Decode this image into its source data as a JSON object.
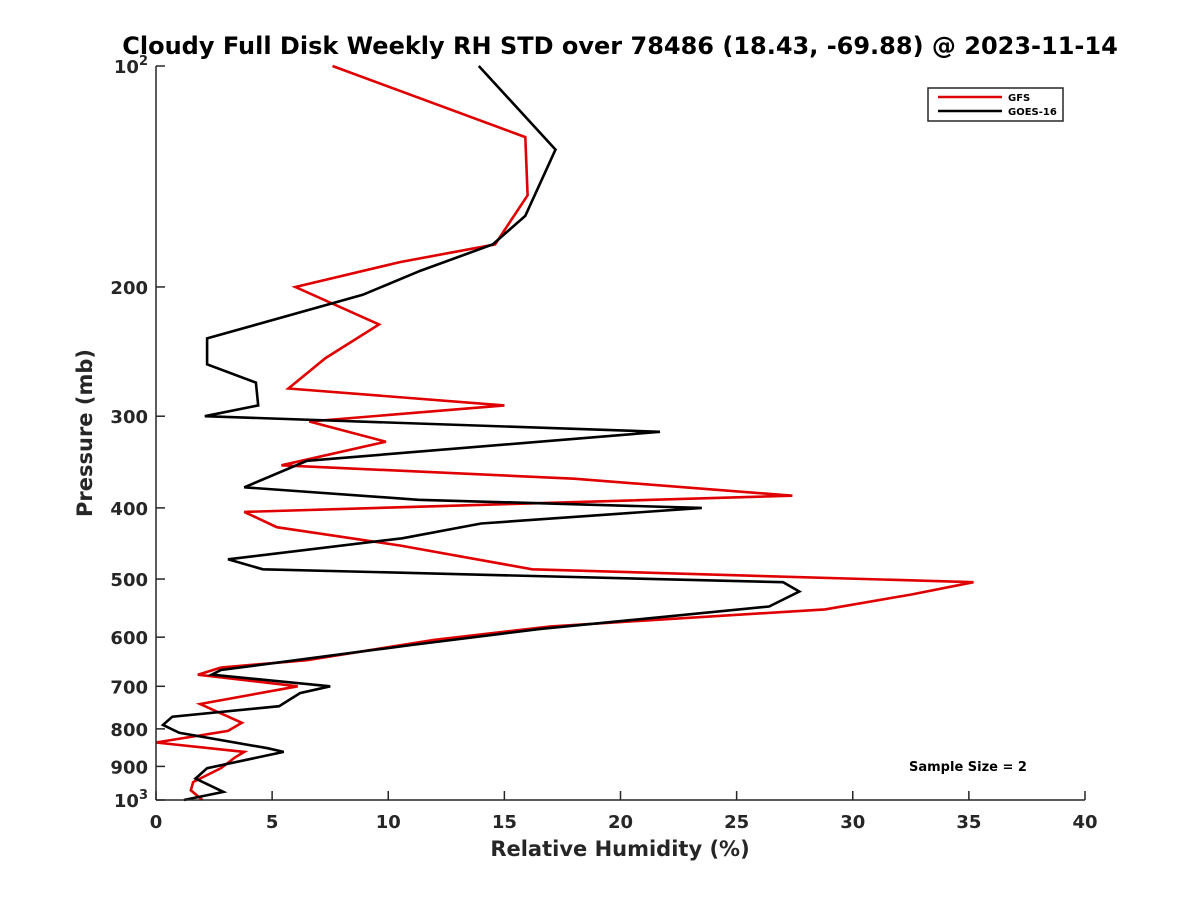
{
  "chart_data": {
    "type": "line",
    "title": "Cloudy Full Disk Weekly RH STD over 78486 (18.43, -69.88) @ 2023-11-14",
    "xlabel": "Relative Humidity (%)",
    "ylabel": "Pressure (mb)",
    "xlim": [
      0,
      40
    ],
    "ylim": [
      100,
      1000
    ],
    "y_scale": "log",
    "y_reversed": true,
    "grid": false,
    "legend_position": "top-right",
    "x_ticks": [
      0,
      5,
      10,
      15,
      20,
      25,
      30,
      35,
      40
    ],
    "y_ticks": [
      {
        "value": 100,
        "base": "10",
        "exp": "2"
      },
      {
        "value": 200,
        "label": "200"
      },
      {
        "value": 300,
        "label": "300"
      },
      {
        "value": 400,
        "label": "400"
      },
      {
        "value": 500,
        "label": "500"
      },
      {
        "value": 600,
        "label": "600"
      },
      {
        "value": 700,
        "label": "700"
      },
      {
        "value": 800,
        "label": "800"
      },
      {
        "value": 900,
        "label": "900"
      },
      {
        "value": 1000,
        "base": "10",
        "exp": "3"
      }
    ],
    "series": [
      {
        "name": "GFS",
        "color": "#e00000",
        "points": [
          [
            7.6,
            100
          ],
          [
            15.9,
            125
          ],
          [
            16.0,
            150
          ],
          [
            14.6,
            175
          ],
          [
            10.5,
            185
          ],
          [
            6.0,
            200
          ],
          [
            9.6,
            225
          ],
          [
            7.3,
            250
          ],
          [
            5.7,
            275
          ],
          [
            15.0,
            290
          ],
          [
            6.6,
            305
          ],
          [
            9.9,
            325
          ],
          [
            5.4,
            350
          ],
          [
            18.0,
            365
          ],
          [
            27.4,
            385
          ],
          [
            3.8,
            405
          ],
          [
            5.2,
            425
          ],
          [
            10.5,
            450
          ],
          [
            16.2,
            485
          ],
          [
            35.2,
            505
          ],
          [
            32.5,
            525
          ],
          [
            28.8,
            550
          ],
          [
            17.0,
            580
          ],
          [
            12.0,
            605
          ],
          [
            6.5,
            645
          ],
          [
            2.8,
            660
          ],
          [
            1.8,
            675
          ],
          [
            6.1,
            700
          ],
          [
            1.9,
            740
          ],
          [
            3.7,
            785
          ],
          [
            3.1,
            805
          ],
          [
            0.0,
            835
          ],
          [
            3.8,
            860
          ],
          [
            3.4,
            875
          ],
          [
            2.8,
            905
          ],
          [
            1.6,
            945
          ],
          [
            1.5,
            970
          ],
          [
            2.0,
            1000
          ]
        ]
      },
      {
        "name": "GOES-16",
        "color": "#000000",
        "points": [
          [
            13.9,
            100
          ],
          [
            17.2,
            130
          ],
          [
            15.9,
            160
          ],
          [
            14.5,
            175
          ],
          [
            11.4,
            190
          ],
          [
            8.9,
            205
          ],
          [
            2.2,
            235
          ],
          [
            2.2,
            255
          ],
          [
            4.3,
            270
          ],
          [
            4.4,
            290
          ],
          [
            2.1,
            300
          ],
          [
            21.7,
            315
          ],
          [
            6.5,
            345
          ],
          [
            3.8,
            375
          ],
          [
            11.3,
            390
          ],
          [
            23.5,
            400
          ],
          [
            14.0,
            420
          ],
          [
            10.6,
            440
          ],
          [
            3.1,
            470
          ],
          [
            4.6,
            485
          ],
          [
            27.0,
            505
          ],
          [
            27.7,
            520
          ],
          [
            26.4,
            545
          ],
          [
            16.5,
            585
          ],
          [
            11.0,
            615
          ],
          [
            2.8,
            665
          ],
          [
            2.4,
            675
          ],
          [
            7.5,
            700
          ],
          [
            6.2,
            715
          ],
          [
            5.3,
            745
          ],
          [
            0.7,
            770
          ],
          [
            0.3,
            790
          ],
          [
            1.0,
            810
          ],
          [
            4.8,
            850
          ],
          [
            5.5,
            860
          ],
          [
            2.2,
            905
          ],
          [
            1.7,
            935
          ],
          [
            2.9,
            975
          ],
          [
            1.2,
            1000
          ]
        ]
      }
    ],
    "annotation": "Sample Size = 2"
  },
  "colors": {
    "axis": "#262626",
    "gfs": "#e00000",
    "goes": "#000000",
    "background": "#ffffff"
  }
}
